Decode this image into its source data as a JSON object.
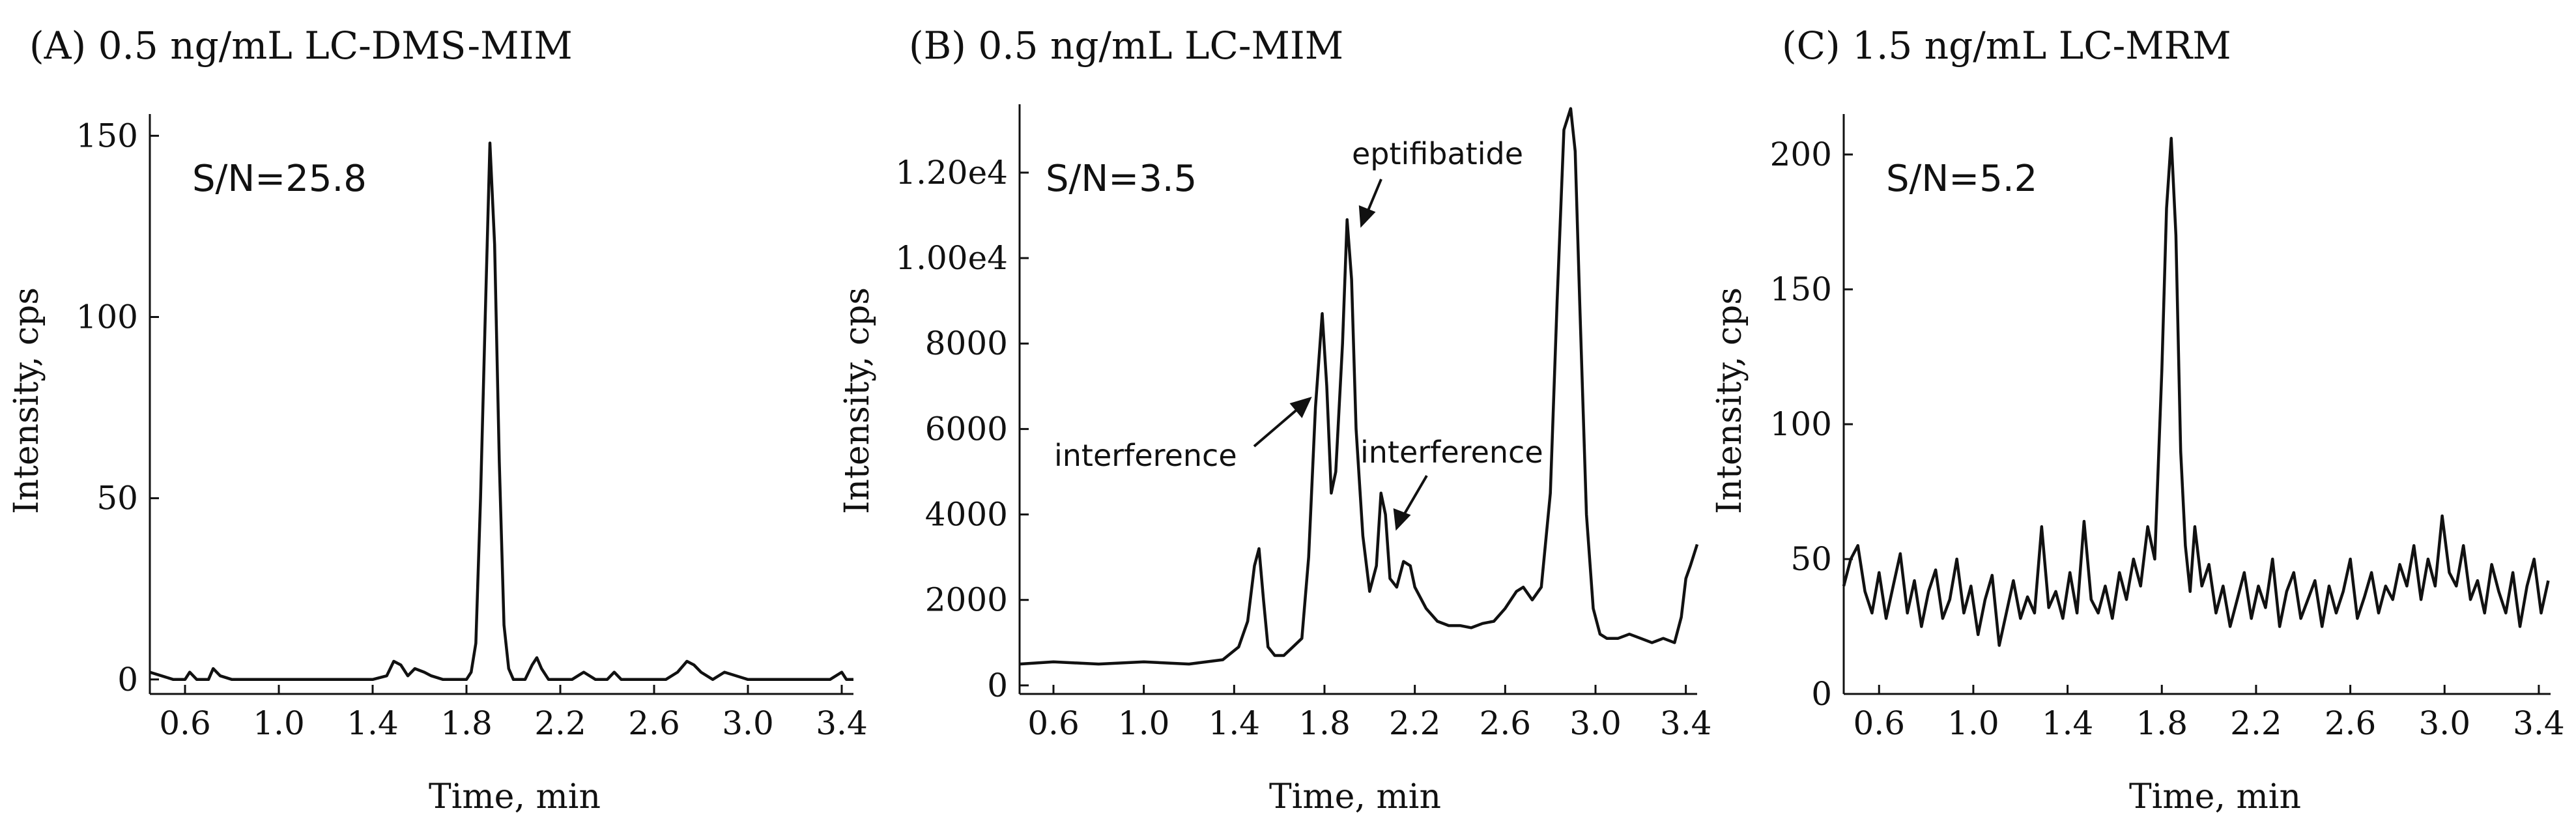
{
  "chart_data": [
    {
      "type": "line",
      "title": "(A) 0.5 ng/mL  LC-DMS-MIM",
      "xlabel": "Time, min",
      "ylabel": "Intensity, cps",
      "xlim": [
        0.45,
        3.45
      ],
      "ylim": [
        -4,
        156
      ],
      "xticks": [
        "0.6",
        "1.0",
        "1.4",
        "1.8",
        "2.2",
        "2.6",
        "3.0",
        "3.4"
      ],
      "yticks": [
        "0",
        "50",
        "100",
        "150"
      ],
      "annotations": [
        {
          "text": "S/N=25.8",
          "position": "top-left"
        }
      ],
      "grid": false,
      "series": [
        {
          "x": [
            0.45,
            0.55,
            0.6,
            0.62,
            0.65,
            0.7,
            0.72,
            0.75,
            0.8,
            1.0,
            1.2,
            1.4,
            1.46,
            1.49,
            1.52,
            1.55,
            1.58,
            1.62,
            1.65,
            1.7,
            1.75,
            1.8,
            1.82,
            1.84,
            1.86,
            1.88,
            1.9,
            1.92,
            1.94,
            1.96,
            1.98,
            2.0,
            2.05,
            2.08,
            2.1,
            2.12,
            2.15,
            2.2,
            2.25,
            2.3,
            2.35,
            2.4,
            2.43,
            2.46,
            2.5,
            2.55,
            2.6,
            2.65,
            2.7,
            2.74,
            2.77,
            2.8,
            2.85,
            2.9,
            3.0,
            3.2,
            3.35,
            3.4,
            3.42,
            3.45
          ],
          "y": [
            2,
            0,
            0,
            2,
            0,
            0,
            3,
            1,
            0,
            0,
            0,
            0,
            1,
            5,
            4,
            1,
            3,
            2,
            1,
            0,
            0,
            0,
            2,
            10,
            50,
            100,
            148,
            120,
            60,
            15,
            3,
            0,
            0,
            4,
            6,
            3,
            0,
            0,
            0,
            2,
            0,
            0,
            2,
            0,
            0,
            0,
            0,
            0,
            2,
            5,
            4,
            2,
            0,
            2,
            0,
            0,
            0,
            2,
            0,
            0
          ]
        }
      ]
    },
    {
      "type": "line",
      "title": "(B) 0.5 ng/mL  LC-MIM",
      "xlabel": "Time, min",
      "ylabel": "Intensity, cps",
      "xlim": [
        0.45,
        3.45
      ],
      "ylim": [
        -200,
        13600
      ],
      "xticks": [
        "0.6",
        "1.0",
        "1.4",
        "1.8",
        "2.2",
        "2.6",
        "3.0",
        "3.4"
      ],
      "yticks": [
        "0",
        "2000",
        "4000",
        "6000",
        "8000",
        "1.00e4",
        "1.20e4"
      ],
      "annotations": [
        {
          "text": "S/N=3.5",
          "position": "top-left"
        },
        {
          "text": "eptifibatide",
          "x": 1.92,
          "y": 10500
        },
        {
          "text": "interference",
          "x": 1.79,
          "y": 7800
        },
        {
          "text": "interference",
          "x": 2.06,
          "y": 4200
        }
      ],
      "grid": false,
      "series": [
        {
          "x": [
            0.45,
            0.6,
            0.8,
            1.0,
            1.2,
            1.35,
            1.42,
            1.46,
            1.49,
            1.51,
            1.53,
            1.55,
            1.58,
            1.62,
            1.66,
            1.7,
            1.73,
            1.76,
            1.79,
            1.81,
            1.83,
            1.85,
            1.88,
            1.9,
            1.92,
            1.94,
            1.97,
            2.0,
            2.03,
            2.05,
            2.07,
            2.09,
            2.12,
            2.15,
            2.18,
            2.2,
            2.25,
            2.3,
            2.35,
            2.4,
            2.45,
            2.5,
            2.55,
            2.6,
            2.65,
            2.68,
            2.72,
            2.76,
            2.8,
            2.83,
            2.86,
            2.89,
            2.91,
            2.93,
            2.96,
            2.99,
            3.02,
            3.05,
            3.1,
            3.15,
            3.2,
            3.25,
            3.3,
            3.35,
            3.38,
            3.4,
            3.42,
            3.45
          ],
          "y": [
            500,
            550,
            500,
            550,
            500,
            600,
            900,
            1500,
            2800,
            3200,
            2000,
            900,
            700,
            700,
            900,
            1100,
            3000,
            6500,
            8700,
            7000,
            4500,
            5000,
            8000,
            10900,
            9500,
            6000,
            3500,
            2200,
            2800,
            4500,
            4000,
            2500,
            2300,
            2900,
            2800,
            2300,
            1800,
            1500,
            1400,
            1400,
            1350,
            1450,
            1500,
            1800,
            2200,
            2300,
            2000,
            2300,
            4500,
            9000,
            13000,
            13500,
            12500,
            9000,
            4000,
            1800,
            1200,
            1100,
            1100,
            1200,
            1100,
            1000,
            1100,
            1000,
            1600,
            2500,
            2800,
            3300
          ]
        }
      ]
    },
    {
      "type": "line",
      "title": "(C) 1.5 ng/mL  LC-MRM",
      "xlabel": "Time, min",
      "ylabel": "Intensity, cps",
      "xlim": [
        0.45,
        3.45
      ],
      "ylim": [
        0,
        215
      ],
      "xticks": [
        "0.6",
        "1.0",
        "1.4",
        "1.8",
        "2.2",
        "2.6",
        "3.0",
        "3.4"
      ],
      "yticks": [
        "0",
        "50",
        "100",
        "150",
        "200"
      ],
      "annotations": [
        {
          "text": "S/N=5.2",
          "position": "top-left"
        }
      ],
      "grid": false,
      "series": [
        {
          "x": [
            0.45,
            0.48,
            0.51,
            0.54,
            0.57,
            0.6,
            0.63,
            0.66,
            0.69,
            0.72,
            0.75,
            0.78,
            0.81,
            0.84,
            0.87,
            0.9,
            0.93,
            0.96,
            0.99,
            1.02,
            1.05,
            1.08,
            1.11,
            1.14,
            1.17,
            1.2,
            1.23,
            1.26,
            1.29,
            1.32,
            1.35,
            1.38,
            1.41,
            1.44,
            1.47,
            1.5,
            1.53,
            1.56,
            1.59,
            1.62,
            1.65,
            1.68,
            1.71,
            1.74,
            1.77,
            1.8,
            1.82,
            1.84,
            1.86,
            1.88,
            1.9,
            1.92,
            1.94,
            1.97,
            2.0,
            2.03,
            2.06,
            2.09,
            2.12,
            2.15,
            2.18,
            2.21,
            2.24,
            2.27,
            2.3,
            2.33,
            2.36,
            2.39,
            2.42,
            2.45,
            2.48,
            2.51,
            2.54,
            2.57,
            2.6,
            2.63,
            2.66,
            2.69,
            2.72,
            2.75,
            2.78,
            2.81,
            2.84,
            2.87,
            2.9,
            2.93,
            2.96,
            2.99,
            3.02,
            3.05,
            3.08,
            3.11,
            3.14,
            3.17,
            3.2,
            3.23,
            3.26,
            3.29,
            3.32,
            3.35,
            3.38,
            3.41,
            3.44
          ],
          "y": [
            40,
            50,
            55,
            38,
            30,
            45,
            28,
            40,
            52,
            30,
            42,
            25,
            38,
            46,
            28,
            35,
            50,
            30,
            40,
            22,
            35,
            44,
            18,
            30,
            42,
            28,
            36,
            30,
            62,
            32,
            38,
            28,
            45,
            30,
            64,
            35,
            30,
            40,
            28,
            45,
            35,
            50,
            40,
            62,
            50,
            120,
            180,
            206,
            170,
            90,
            55,
            38,
            62,
            40,
            48,
            30,
            40,
            25,
            35,
            45,
            28,
            40,
            32,
            50,
            25,
            38,
            45,
            28,
            35,
            42,
            25,
            40,
            30,
            38,
            50,
            28,
            36,
            45,
            30,
            40,
            35,
            48,
            40,
            55,
            35,
            50,
            40,
            66,
            45,
            40,
            55,
            35,
            42,
            30,
            48,
            38,
            30,
            45,
            25,
            40,
            50,
            30,
            42
          ]
        }
      ]
    }
  ]
}
